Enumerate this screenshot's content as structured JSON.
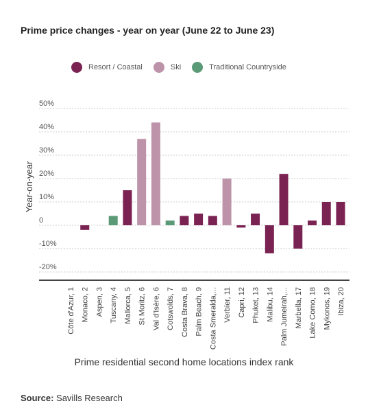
{
  "title": "Prime price changes - year on year (June 22 to June 23)",
  "source": {
    "label": "Source:",
    "text": "Savills Research"
  },
  "colors": {
    "resort": "#7a2352",
    "ski": "#bd93a9",
    "countryside": "#5b9a77",
    "grid": "#cccccc",
    "axis": "#444444"
  },
  "chart_data": {
    "type": "bar",
    "title": "Prime price changes - year on year (June 22 to June 23)",
    "xlabel": "Prime residential second home locations index rank",
    "ylabel": "Year-on-year",
    "ylim": [
      -20,
      50
    ],
    "yticks": [
      {
        "value": 50,
        "label": "50%"
      },
      {
        "value": 40,
        "label": "40%"
      },
      {
        "value": 30,
        "label": "30%"
      },
      {
        "value": 20,
        "label": "20%"
      },
      {
        "value": 10,
        "label": "10%"
      },
      {
        "value": 0,
        "label": "0"
      },
      {
        "value": -10,
        "label": "-10%"
      },
      {
        "value": -20,
        "label": "-20%"
      }
    ],
    "grid": true,
    "legend_placement": "top",
    "legend": [
      {
        "name": "Resort / Coastal",
        "color_key": "resort"
      },
      {
        "name": "Ski",
        "color_key": "ski"
      },
      {
        "name": "Traditional Countryside",
        "color_key": "countryside"
      }
    ],
    "categories": [
      "Côte d'Azur, 1",
      "Monaco, 2",
      "Aspen, 3",
      "Tuscany, 4",
      "Mallorca, 5",
      "St Moritz, 6",
      "Val d'Isère, 6",
      "Cotswolds, 7",
      "Costa Brava, 8",
      "Palm Beach, 9",
      "Costa Smeralda,...",
      "Verbier, 11",
      "Capri, 12",
      "Phuket, 13",
      "Malibu, 14",
      "Palm Jumeirah,...",
      "Marbella, 17",
      "Lake Como, 18",
      "Mykonos, 19",
      "Ibiza, 20"
    ],
    "values": [
      0,
      -2,
      0,
      4,
      15,
      37,
      44,
      2,
      4,
      5,
      4,
      20,
      -1,
      5,
      -12,
      22,
      -10,
      2,
      10,
      10
    ],
    "groups": [
      "resort",
      "resort",
      "ski",
      "countryside",
      "resort",
      "ski",
      "ski",
      "countryside",
      "resort",
      "resort",
      "resort",
      "ski",
      "resort",
      "resort",
      "resort",
      "resort",
      "resort",
      "resort",
      "resort",
      "resort"
    ]
  }
}
